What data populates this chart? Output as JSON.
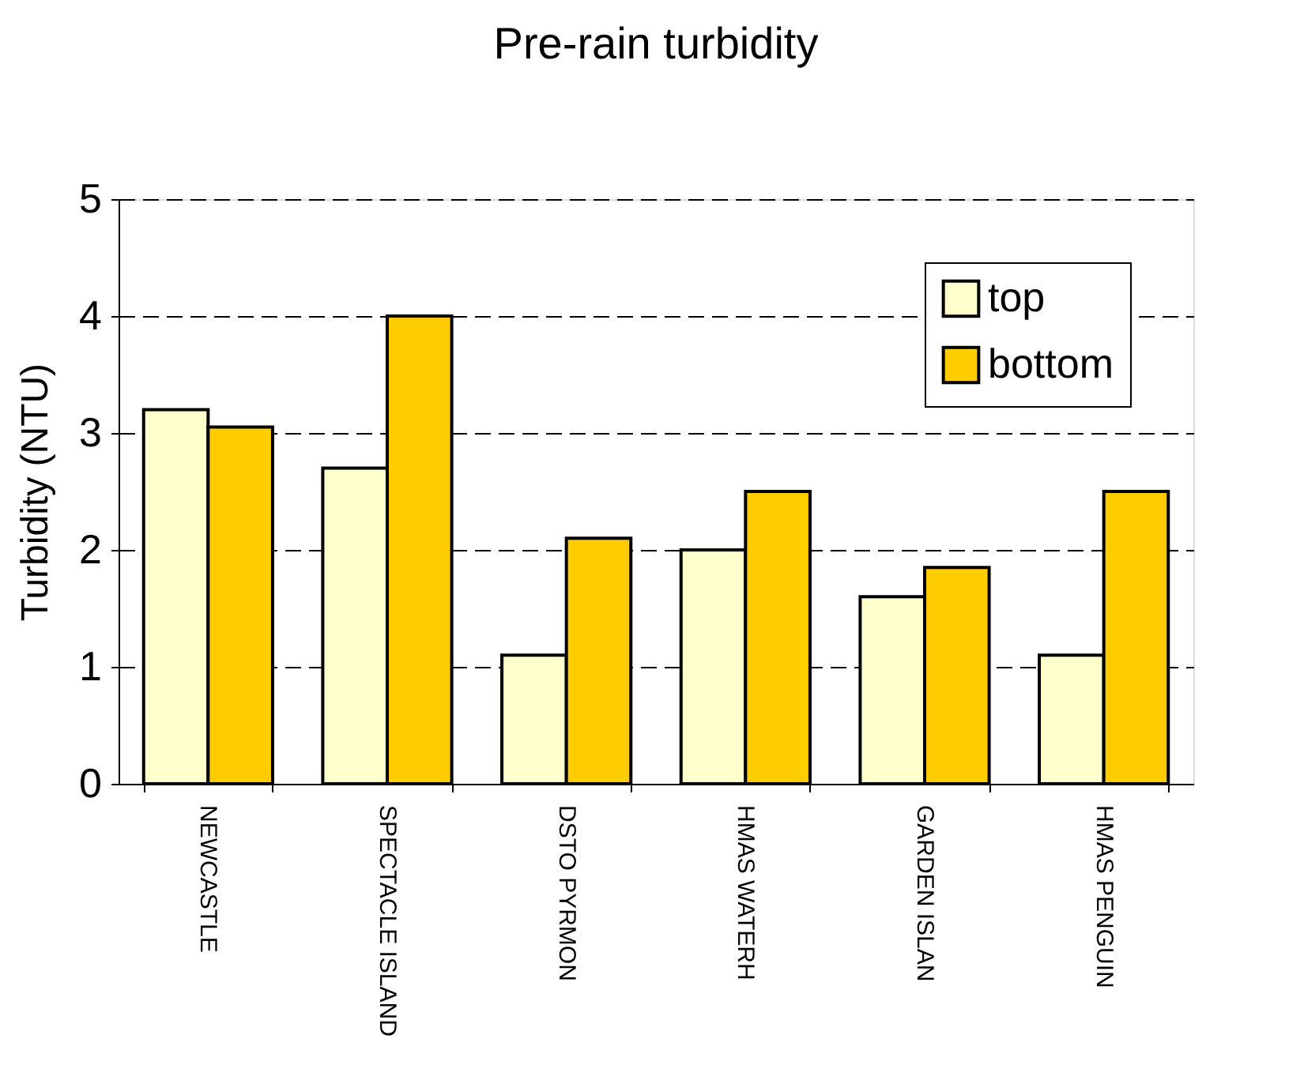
{
  "chart_data": {
    "type": "bar",
    "title": "Pre-rain turbidity",
    "ylabel": "Turbidity (NTU)",
    "categories": [
      "NEWCASTLE",
      "SPECTACLE ISLAND",
      "DSTO PYRMON",
      "HMAS WATERH",
      "GARDEN ISLAN",
      "HMAS PENGUIN"
    ],
    "series": [
      {
        "name": "top",
        "color": "#ffffcc",
        "values": [
          3.2,
          2.7,
          1.1,
          2.0,
          1.6,
          1.1
        ]
      },
      {
        "name": "bottom",
        "color": "#ffcc00",
        "values": [
          3.05,
          4.0,
          2.1,
          2.5,
          1.85,
          2.5
        ]
      }
    ],
    "ylim": [
      0,
      5
    ],
    "yticks": [
      0,
      1,
      2,
      3,
      4,
      5
    ],
    "grid": "y",
    "legend": "top right"
  }
}
